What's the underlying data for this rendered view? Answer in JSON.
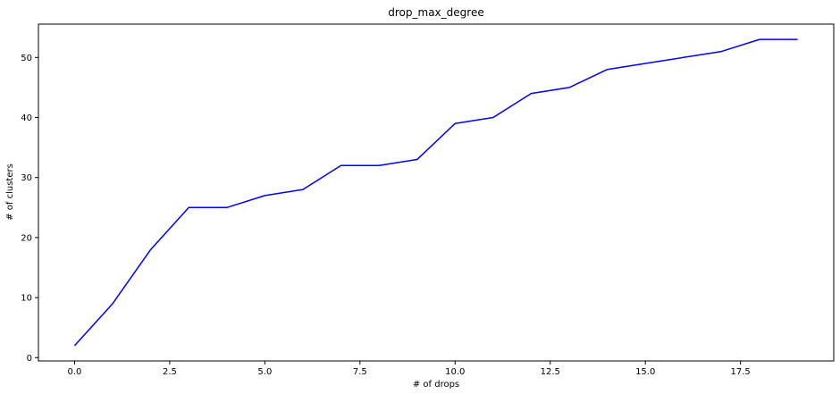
{
  "chart_data": {
    "type": "line",
    "title": "drop_max_degree",
    "xlabel": "# of drops",
    "ylabel": "# of clusters",
    "xlim": [
      -0.95,
      19.95
    ],
    "ylim": [
      -0.55,
      55.55
    ],
    "xticks": [
      0.0,
      2.5,
      5.0,
      7.5,
      10.0,
      12.5,
      15.0,
      17.5
    ],
    "xtick_labels": [
      "0.0",
      "2.5",
      "5.0",
      "7.5",
      "10.0",
      "12.5",
      "15.0",
      "17.5"
    ],
    "yticks": [
      0,
      10,
      20,
      30,
      40,
      50
    ],
    "ytick_labels": [
      "0",
      "10",
      "20",
      "30",
      "40",
      "50"
    ],
    "grid": false,
    "series": [
      {
        "color": "#0000ff",
        "x": [
          0,
          1,
          2,
          3,
          4,
          5,
          6,
          7,
          8,
          9,
          10,
          11,
          12,
          13,
          14,
          15,
          16,
          17,
          18,
          19
        ],
        "y": [
          2,
          9,
          18,
          25,
          25,
          27,
          28,
          32,
          32,
          33,
          39,
          40,
          44,
          45,
          48,
          49,
          50,
          51,
          53,
          53
        ]
      }
    ]
  }
}
